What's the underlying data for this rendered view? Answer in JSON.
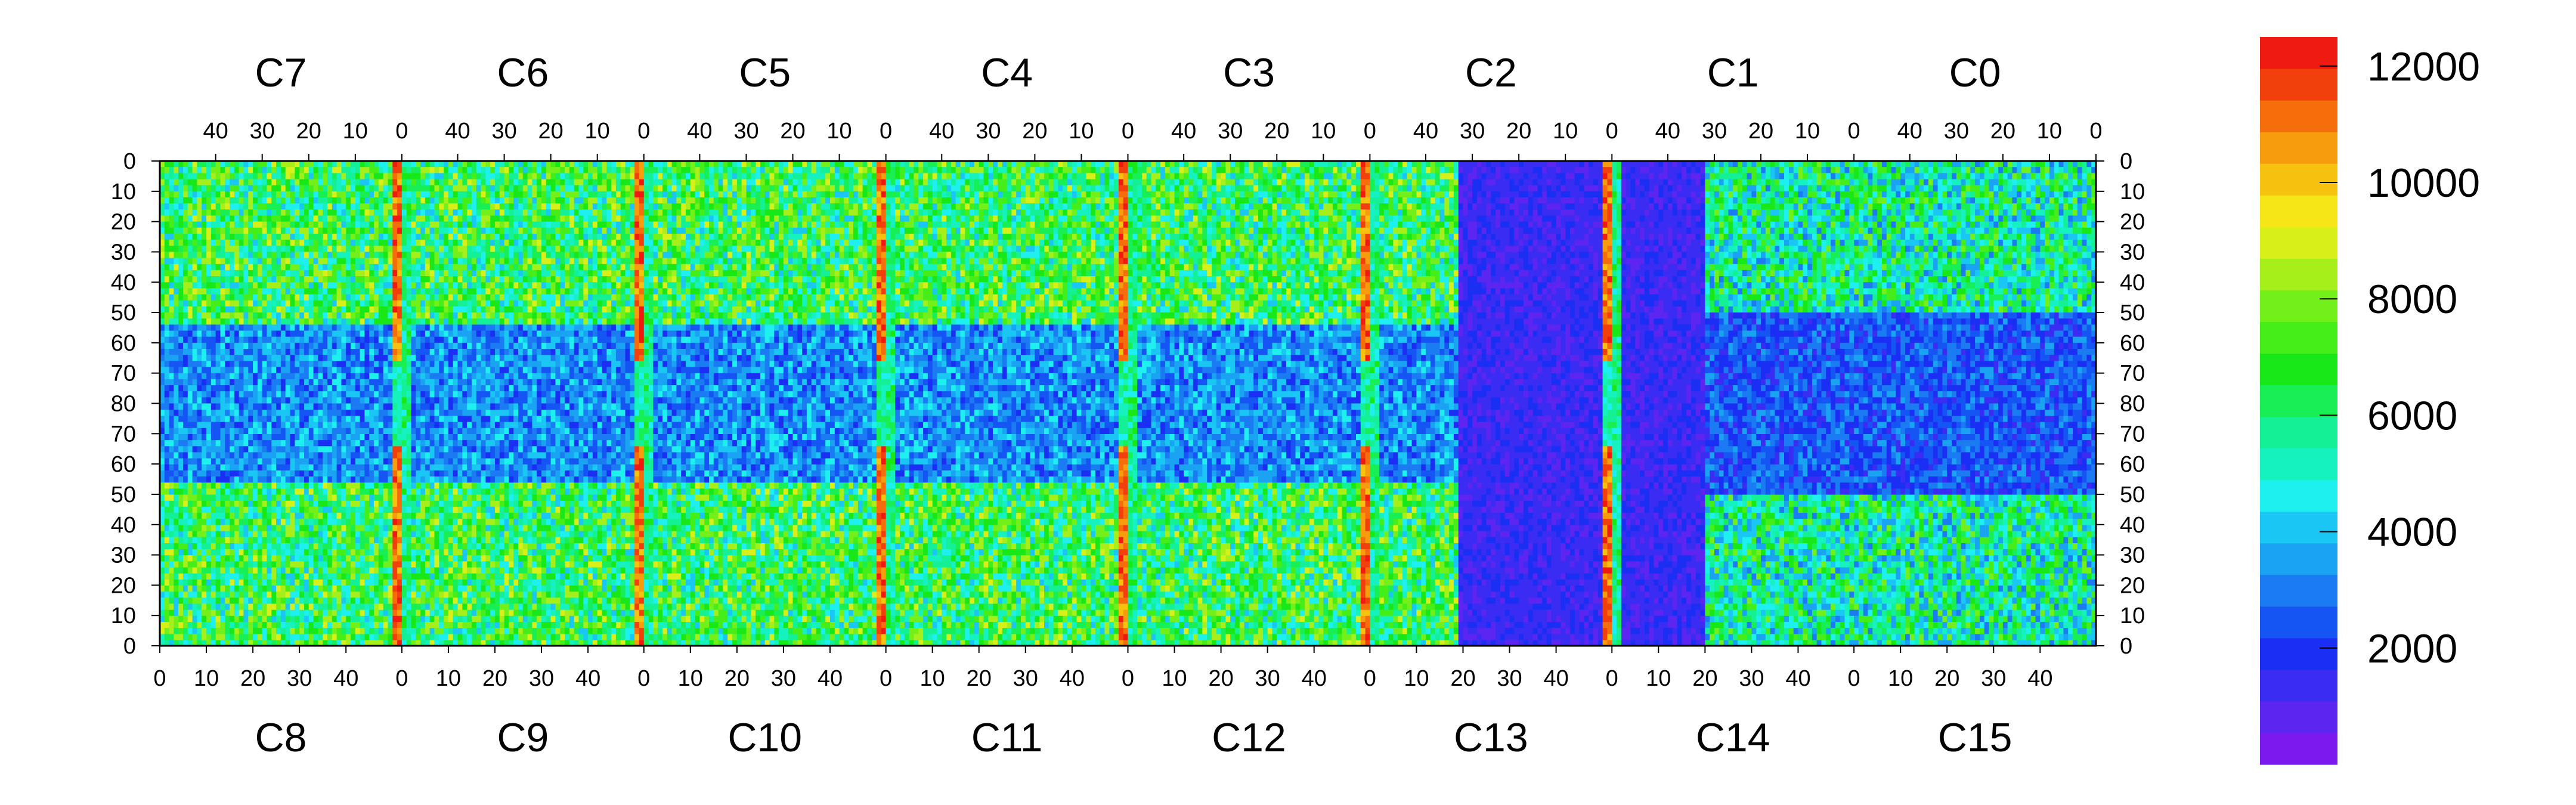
{
  "chart_data": {
    "type": "heatmap",
    "title": "",
    "top_chip_labels": [
      "C7",
      "C6",
      "C5",
      "C4",
      "C3",
      "C2",
      "C1",
      "C0"
    ],
    "bottom_chip_labels": [
      "C8",
      "C9",
      "C10",
      "C11",
      "C12",
      "C13",
      "C14",
      "C15"
    ],
    "top_x_tick_labels": [
      "40",
      "30",
      "20",
      "10",
      "0"
    ],
    "bottom_x_tick_labels": [
      "0",
      "10",
      "20",
      "30",
      "40"
    ],
    "y_tick_labels": [
      "0",
      "10",
      "20",
      "30",
      "40",
      "50",
      "60",
      "70",
      "80",
      "70",
      "60",
      "50",
      "40",
      "30",
      "20",
      "10",
      "0"
    ],
    "rows_per_chip_half": 80,
    "columns_per_chip": 52,
    "chips_per_row": 8,
    "colorbar": {
      "min": 0,
      "max": 12500,
      "tick_values": [
        2000,
        4000,
        6000,
        8000,
        10000,
        12000
      ],
      "tick_labels": [
        "2000",
        "4000",
        "6000",
        "8000",
        "10000",
        "12000"
      ],
      "colors": [
        "#7a1aee",
        "#5c25f0",
        "#3a2cf2",
        "#1a2ef4",
        "#1455f3",
        "#1b7bf2",
        "#19a3f2",
        "#1ac7f4",
        "#1ef0ef",
        "#15f2c0",
        "#14f095",
        "#17ef55",
        "#18e818",
        "#45ee18",
        "#73ef1a",
        "#a6ef1b",
        "#d8ef1a",
        "#f6e617",
        "#f6c20f",
        "#f79c0c",
        "#f66d0b",
        "#f2400d",
        "#ef1b10"
      ]
    },
    "description_regions": {
      "hot_columns": [
        0,
        1,
        2,
        3,
        4,
        5,
        6,
        7
      ],
      "low_region_chip_pairs": [
        "C2/C13",
        "C1/C14",
        "C0/C15 lower"
      ]
    }
  }
}
